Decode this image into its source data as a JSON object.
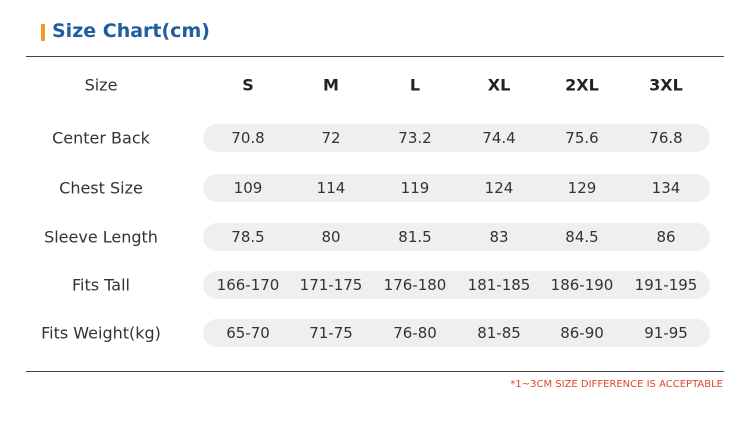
{
  "header": {
    "title": "Size Chart(cm)"
  },
  "table": {
    "columns": [
      "Size",
      "S",
      "M",
      "L",
      "XL",
      "2XL",
      "3XL"
    ],
    "rows": [
      [
        "Center Back",
        "70.8",
        "72",
        "73.2",
        "74.4",
        "75.6",
        "76.8"
      ],
      [
        "Chest Size",
        "109",
        "114",
        "119",
        "124",
        "129",
        "134"
      ],
      [
        "Sleeve Length",
        "78.5",
        "80",
        "81.5",
        "83",
        "84.5",
        "86"
      ],
      [
        "Fits Tall",
        "166-170",
        "171-175",
        "176-180",
        "181-185",
        "186-190",
        "191-195"
      ],
      [
        "Fits Weight(kg)",
        "65-70",
        "71-75",
        "76-80",
        "81-85",
        "86-90",
        "91-95"
      ]
    ]
  },
  "footnote": "*1~3CM SIZE DIFFERENCE IS ACCEPTABLE"
}
